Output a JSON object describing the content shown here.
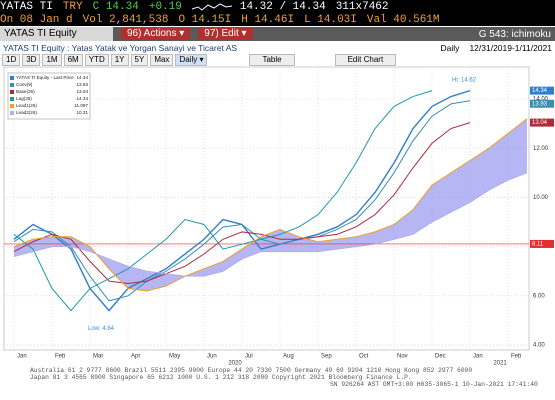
{
  "header": {
    "ticker": "YATAS TI",
    "currency": "TRY",
    "last": "C 14.34",
    "change": "+0.19",
    "bid_ask": "14.32 / 14.34",
    "size": "311x7462",
    "date": "On 08 Jan d",
    "volume": "Vol 2,841,538",
    "open": "O 14.15I",
    "high": "H 14.46I",
    "low": "L 14.03I",
    "value": "Val 40.561M"
  },
  "toolbar": {
    "security": "YATAS TI Equity",
    "actions": "96) Actions ▾",
    "edit": "97) Edit ▾",
    "function": "G 543: ichimoku"
  },
  "subheader": {
    "description": "YATAS TI Equity : Yatas Yatak ve Yorgan Sanayi ve Ticaret AS",
    "frequency": "Daily",
    "range": "12/31/2019-1/11/2021"
  },
  "buttons": [
    "1D",
    "3D",
    "1M",
    "6M",
    "YTD",
    "1Y",
    "5Y",
    "Max",
    "Daily ▾",
    "Table",
    "Edit Chart"
  ],
  "footer": [
    "Australia 61 2 9777 8600 Brazil 5511 2395 9000 Europe 44 20 7330 7500 Germany 49 69 9204 1210 Hong Kong 852 2977 6000",
    "Japan 81 3 4565 8900 Singapore 65 6212 1000 U.S. 1 212 318 2000 Copyright 2021 Bloomberg Finance L.P.",
    "SN 926264 AST GMT+3:00 H635-3065-1 10-Jan-2021 17:41:40"
  ],
  "chart_data": {
    "type": "line",
    "categories": [
      "Jan",
      null,
      "Feb",
      null,
      "Mar",
      null,
      "Apr",
      null,
      "May",
      null,
      "Jun",
      null,
      "Jul",
      null,
      "Aug",
      null,
      "Sep",
      null,
      "Oct",
      null,
      "Nov",
      null,
      "Dec",
      null,
      "Jan",
      null,
      "Feb",
      null
    ],
    "year_labels": [
      "2020",
      "2021"
    ],
    "series": [
      {
        "name": "YATAS TI Equity - Last Price",
        "last_value": 14.34,
        "color": "#2f7fd0",
        "values": [
          8.3,
          8.9,
          8.5,
          7.9,
          6.3,
          5.4,
          6.3,
          6.7,
          7.1,
          7.7,
          8.3,
          9.1,
          8.9,
          7.9,
          8.1,
          8.3,
          8.5,
          8.8,
          9.3,
          10.2,
          11.4,
          12.8,
          13.7,
          14.1,
          14.34,
          null,
          null,
          null
        ]
      },
      {
        "name": "Conv(9)",
        "last_value": 13.93,
        "color": "#3a8fb0",
        "values": [
          8.2,
          8.7,
          8.6,
          8.0,
          6.8,
          5.8,
          6.0,
          6.6,
          7.0,
          7.5,
          8.1,
          8.8,
          8.9,
          8.3,
          8.1,
          8.3,
          8.4,
          8.7,
          9.1,
          9.9,
          11.0,
          12.3,
          13.3,
          13.8,
          13.93,
          null,
          null,
          null
        ]
      },
      {
        "name": "Base(26)",
        "last_value": 13.04,
        "color": "#b02a3a",
        "values": [
          7.8,
          8.2,
          8.5,
          8.3,
          7.4,
          6.6,
          6.5,
          6.6,
          6.9,
          7.2,
          7.7,
          8.3,
          8.6,
          8.5,
          8.3,
          8.3,
          8.4,
          8.5,
          8.8,
          9.3,
          10.1,
          11.2,
          12.2,
          12.8,
          13.04,
          null,
          null,
          null
        ]
      },
      {
        "name": "Lag(26)",
        "last_value": 14.34,
        "color": "#1a9aa8",
        "values": [
          8.5,
          7.9,
          6.3,
          5.4,
          6.3,
          6.7,
          7.1,
          7.7,
          8.3,
          9.1,
          8.9,
          7.9,
          8.1,
          8.3,
          8.5,
          8.8,
          9.3,
          10.2,
          11.4,
          12.8,
          13.7,
          14.1,
          14.34,
          null,
          null,
          null,
          null,
          null
        ]
      },
      {
        "name": "Lead1(26)",
        "last_value": 11.097,
        "color": "#f0a020",
        "values": [
          8.0,
          8.3,
          8.4,
          8.4,
          8.0,
          7.1,
          6.3,
          6.2,
          6.4,
          6.8,
          7.1,
          7.4,
          7.9,
          8.4,
          8.7,
          8.4,
          8.2,
          8.3,
          8.4,
          8.6,
          8.9,
          9.5,
          10.5,
          11.0,
          11.5,
          12.0,
          12.6,
          13.2
        ]
      },
      {
        "name": "Lead2(26)",
        "last_value": 10.31,
        "color": "#b0b0f0",
        "values": [
          7.6,
          7.8,
          8.0,
          8.0,
          7.8,
          7.5,
          7.2,
          7.0,
          6.9,
          6.8,
          6.8,
          7.0,
          7.5,
          7.8,
          7.8,
          7.8,
          7.8,
          7.9,
          8.0,
          8.1,
          8.3,
          8.5,
          9.0,
          9.4,
          9.8,
          10.3,
          10.7,
          11.0
        ]
      }
    ],
    "cloud_color": "#9d9df0",
    "reference_line": 8.11,
    "annotations": [
      {
        "text": "Hi: 14.62",
        "value": 14.62
      },
      {
        "text": "Low: 4.84",
        "value": 4.84
      }
    ],
    "ylim": [
      3.8,
      15.3
    ],
    "yticks": [
      {
        "value": 4,
        "label": "4.00"
      },
      {
        "value": 6,
        "label": "6.00"
      },
      {
        "value": 8,
        "label": "8.00"
      },
      {
        "value": 10,
        "label": "10.00"
      },
      {
        "value": 12,
        "label": "12.00"
      },
      {
        "value": 14,
        "label": "14.00"
      }
    ],
    "grid": true
  }
}
